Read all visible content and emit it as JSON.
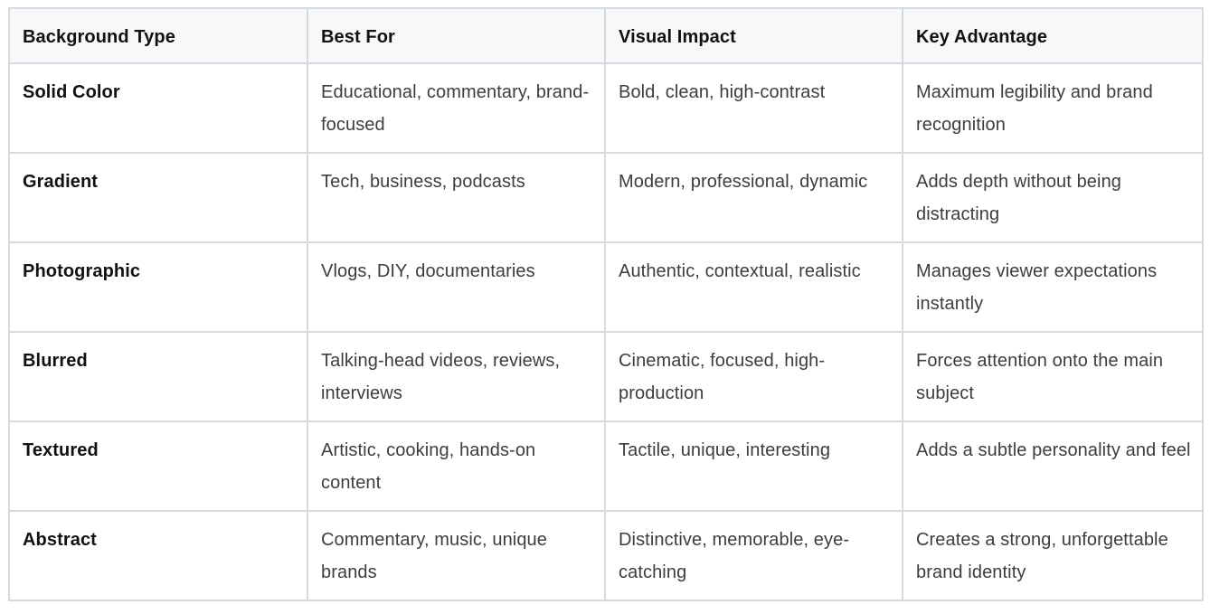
{
  "table": {
    "headers": [
      "Background Type",
      "Best For",
      "Visual Impact",
      "Key Advantage"
    ],
    "rows": [
      [
        "Solid Color",
        "Educational, commentary, brand-focused",
        "Bold, clean, high-contrast",
        "Maximum legibility and brand recognition"
      ],
      [
        "Gradient",
        "Tech, business, podcasts",
        "Modern, professional, dynamic",
        "Adds depth without being distracting"
      ],
      [
        "Photographic",
        "Vlogs, DIY, documentaries",
        "Authentic, contextual, realistic",
        "Manages viewer expectations instantly"
      ],
      [
        "Blurred",
        "Talking-head videos, reviews, interviews",
        "Cinematic, focused, high-production",
        "Forces attention onto the main subject"
      ],
      [
        "Textured",
        "Artistic, cooking, hands-on content",
        "Tactile, unique, interesting",
        "Adds a subtle personality and feel"
      ],
      [
        "Abstract",
        "Commentary, music, unique brands",
        "Distinctive, memorable, eye-catching",
        "Creates a strong, unforgettable brand identity"
      ]
    ]
  },
  "colors": {
    "border": "#d6d9de",
    "header_background": "#f7f8fa",
    "heading_text": "#111111",
    "body_text": "#3d3d3d"
  }
}
